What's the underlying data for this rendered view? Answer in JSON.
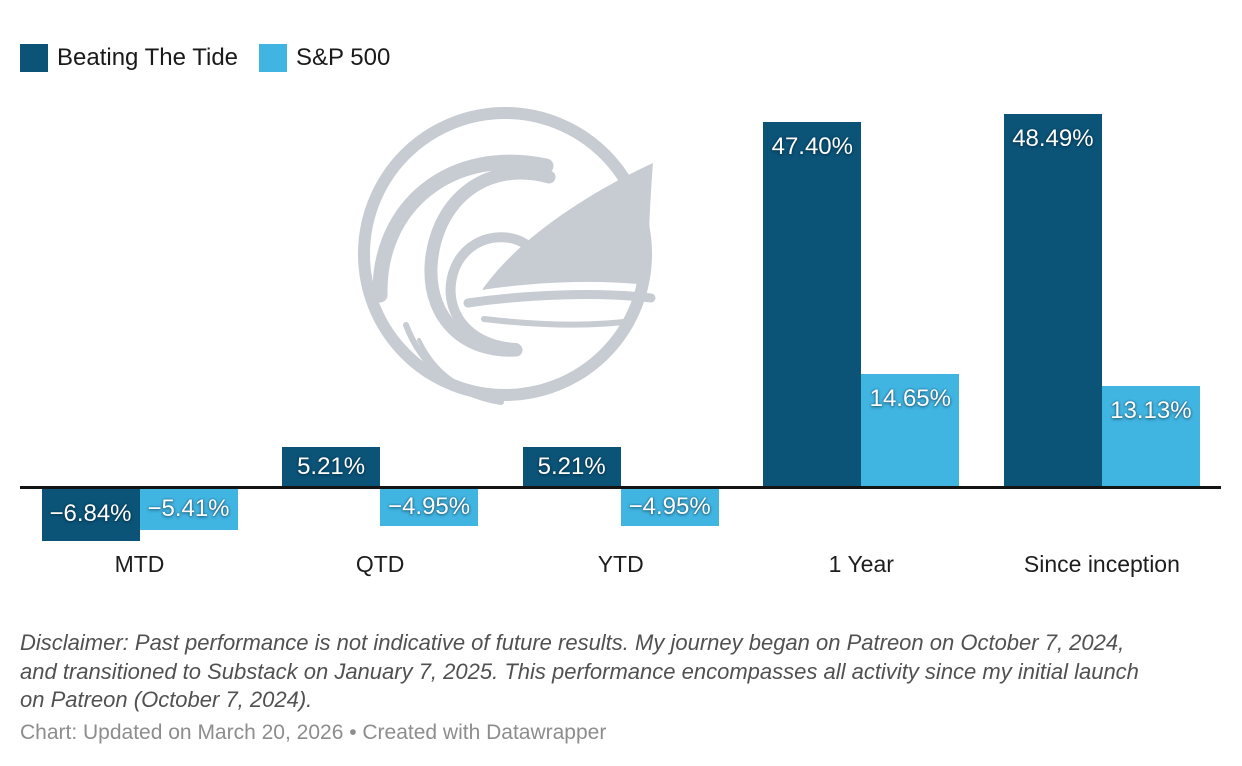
{
  "chart_data": {
    "type": "bar",
    "title": "",
    "categories": [
      "MTD",
      "QTD",
      "YTD",
      "1 Year",
      "Since inception"
    ],
    "series": [
      {
        "name": "Beating The Tide",
        "color": "#0b5478",
        "values": [
          -6.84,
          5.21,
          5.21,
          47.4,
          48.49
        ],
        "value_labels": [
          "−6.84%",
          "5.21%",
          "5.21%",
          "47.40%",
          "48.49%"
        ]
      },
      {
        "name": "S&P 500",
        "color": "#41b5e2",
        "values": [
          -5.41,
          -4.95,
          -4.95,
          14.65,
          13.13
        ],
        "value_labels": [
          "−5.41%",
          "−4.95%",
          "−4.95%",
          "14.65%",
          "13.13%"
        ]
      }
    ],
    "xlabel": "",
    "ylabel": "",
    "ylim": [
      -8,
      52
    ],
    "baseline": 0,
    "grid": false,
    "legend_position": "top-left"
  },
  "watermark": {
    "name": "wave-sail-logo"
  },
  "disclaimer": {
    "lines": [
      "Disclaimer: Past performance is not indicative of future results. My journey began on Patreon on October 7, 2024,",
      "and transitioned to Substack on January 7, 2025. This performance encompasses all activity since my initial launch",
      "on Patreon (October 7, 2024)."
    ]
  },
  "footer": {
    "text": "Chart: Updated on March 20, 2026 • Created with Datawrapper"
  }
}
